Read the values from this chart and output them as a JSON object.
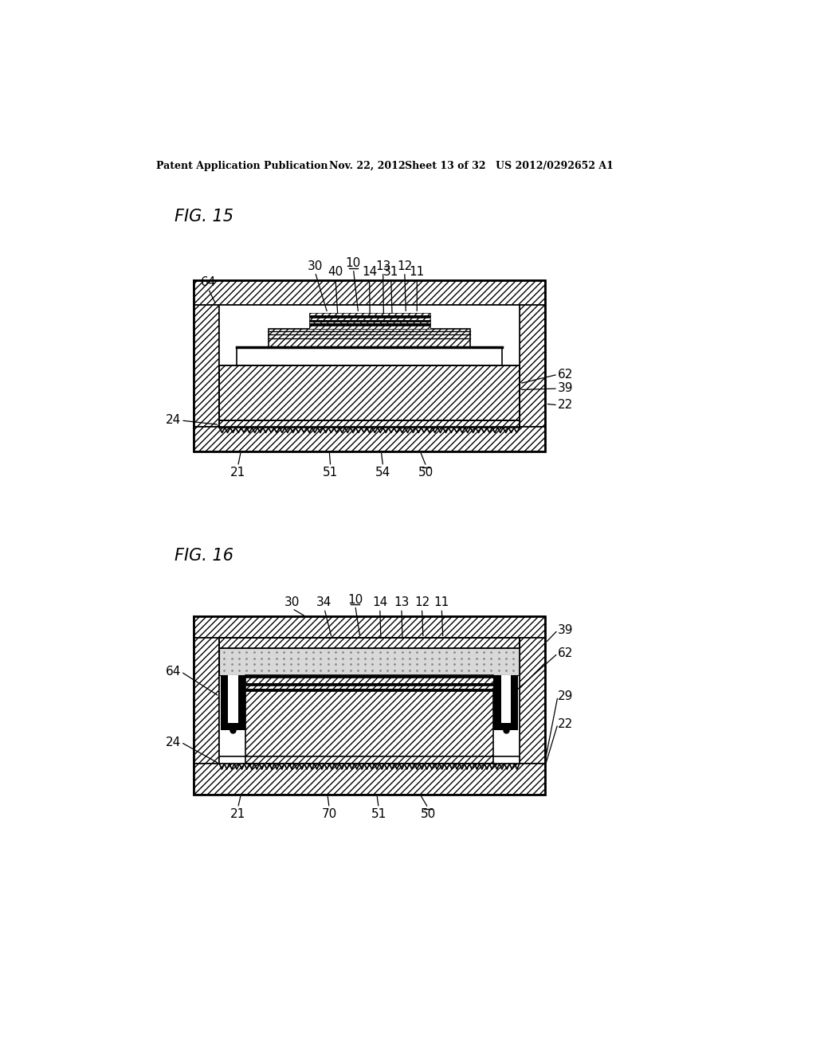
{
  "bg_color": "#ffffff",
  "header_text": "Patent Application Publication",
  "header_date": "Nov. 22, 2012",
  "header_sheet": "Sheet 13 of 32",
  "header_patent": "US 2012/0292652 A1",
  "fig15_title": "FIG. 15",
  "fig16_title": "FIG. 16",
  "line_color": "#000000"
}
